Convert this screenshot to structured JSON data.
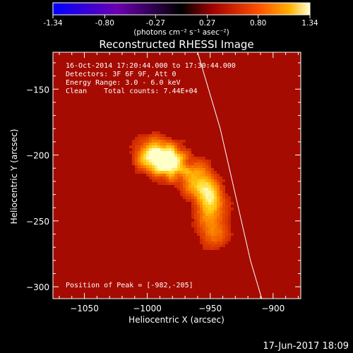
{
  "chart_data": {
    "type": "heatmap",
    "title": "Reconstructed RHESSI Image",
    "xlabel": "Heliocentric X (arcsec)",
    "ylabel": "Heliocentric Y (arcsec)",
    "xlim": [
      -1075,
      -878
    ],
    "ylim": [
      -309,
      -122
    ],
    "x_ticks": [
      -1050,
      -1000,
      -950,
      -900
    ],
    "y_ticks": [
      -150,
      -200,
      -250,
      -300
    ],
    "colorbar": {
      "ticks": [
        "-1.34",
        "-0.80",
        "-0.27",
        "0.27",
        "0.80",
        "1.34"
      ],
      "range": [
        -1.34,
        1.34
      ],
      "unit_label": "(photons cm⁻² s⁻¹ asec⁻²)"
    },
    "sources": [
      {
        "x": -982,
        "y": -205,
        "intensity": 1.34
      },
      {
        "x": -997,
        "y": -200,
        "intensity": 1.1
      },
      {
        "x": -950,
        "y": -234,
        "intensity": 1.05
      },
      {
        "x": -960,
        "y": -218,
        "intensity": 0.9
      },
      {
        "x": -948,
        "y": -257,
        "intensity": 0.75
      }
    ],
    "limb_curve": [
      [
        -960,
        -122
      ],
      [
        -942,
        -180
      ],
      [
        -930,
        -230
      ],
      [
        -918,
        -280
      ],
      [
        -909,
        -309
      ]
    ],
    "annotations": {
      "line1": "16-Oct-2014 17:20:44.000 to 17:30:44.000",
      "line2": "Detectors: 3F 6F 9F, Att 0",
      "line3": "Energy Range: 3.0 - 6.0 keV",
      "line4": "Clean    Total counts: 7.44E+04",
      "peak": "Position of Peak = [-982,-205]"
    }
  },
  "footer_date": "17-Jun-2017 18:09"
}
